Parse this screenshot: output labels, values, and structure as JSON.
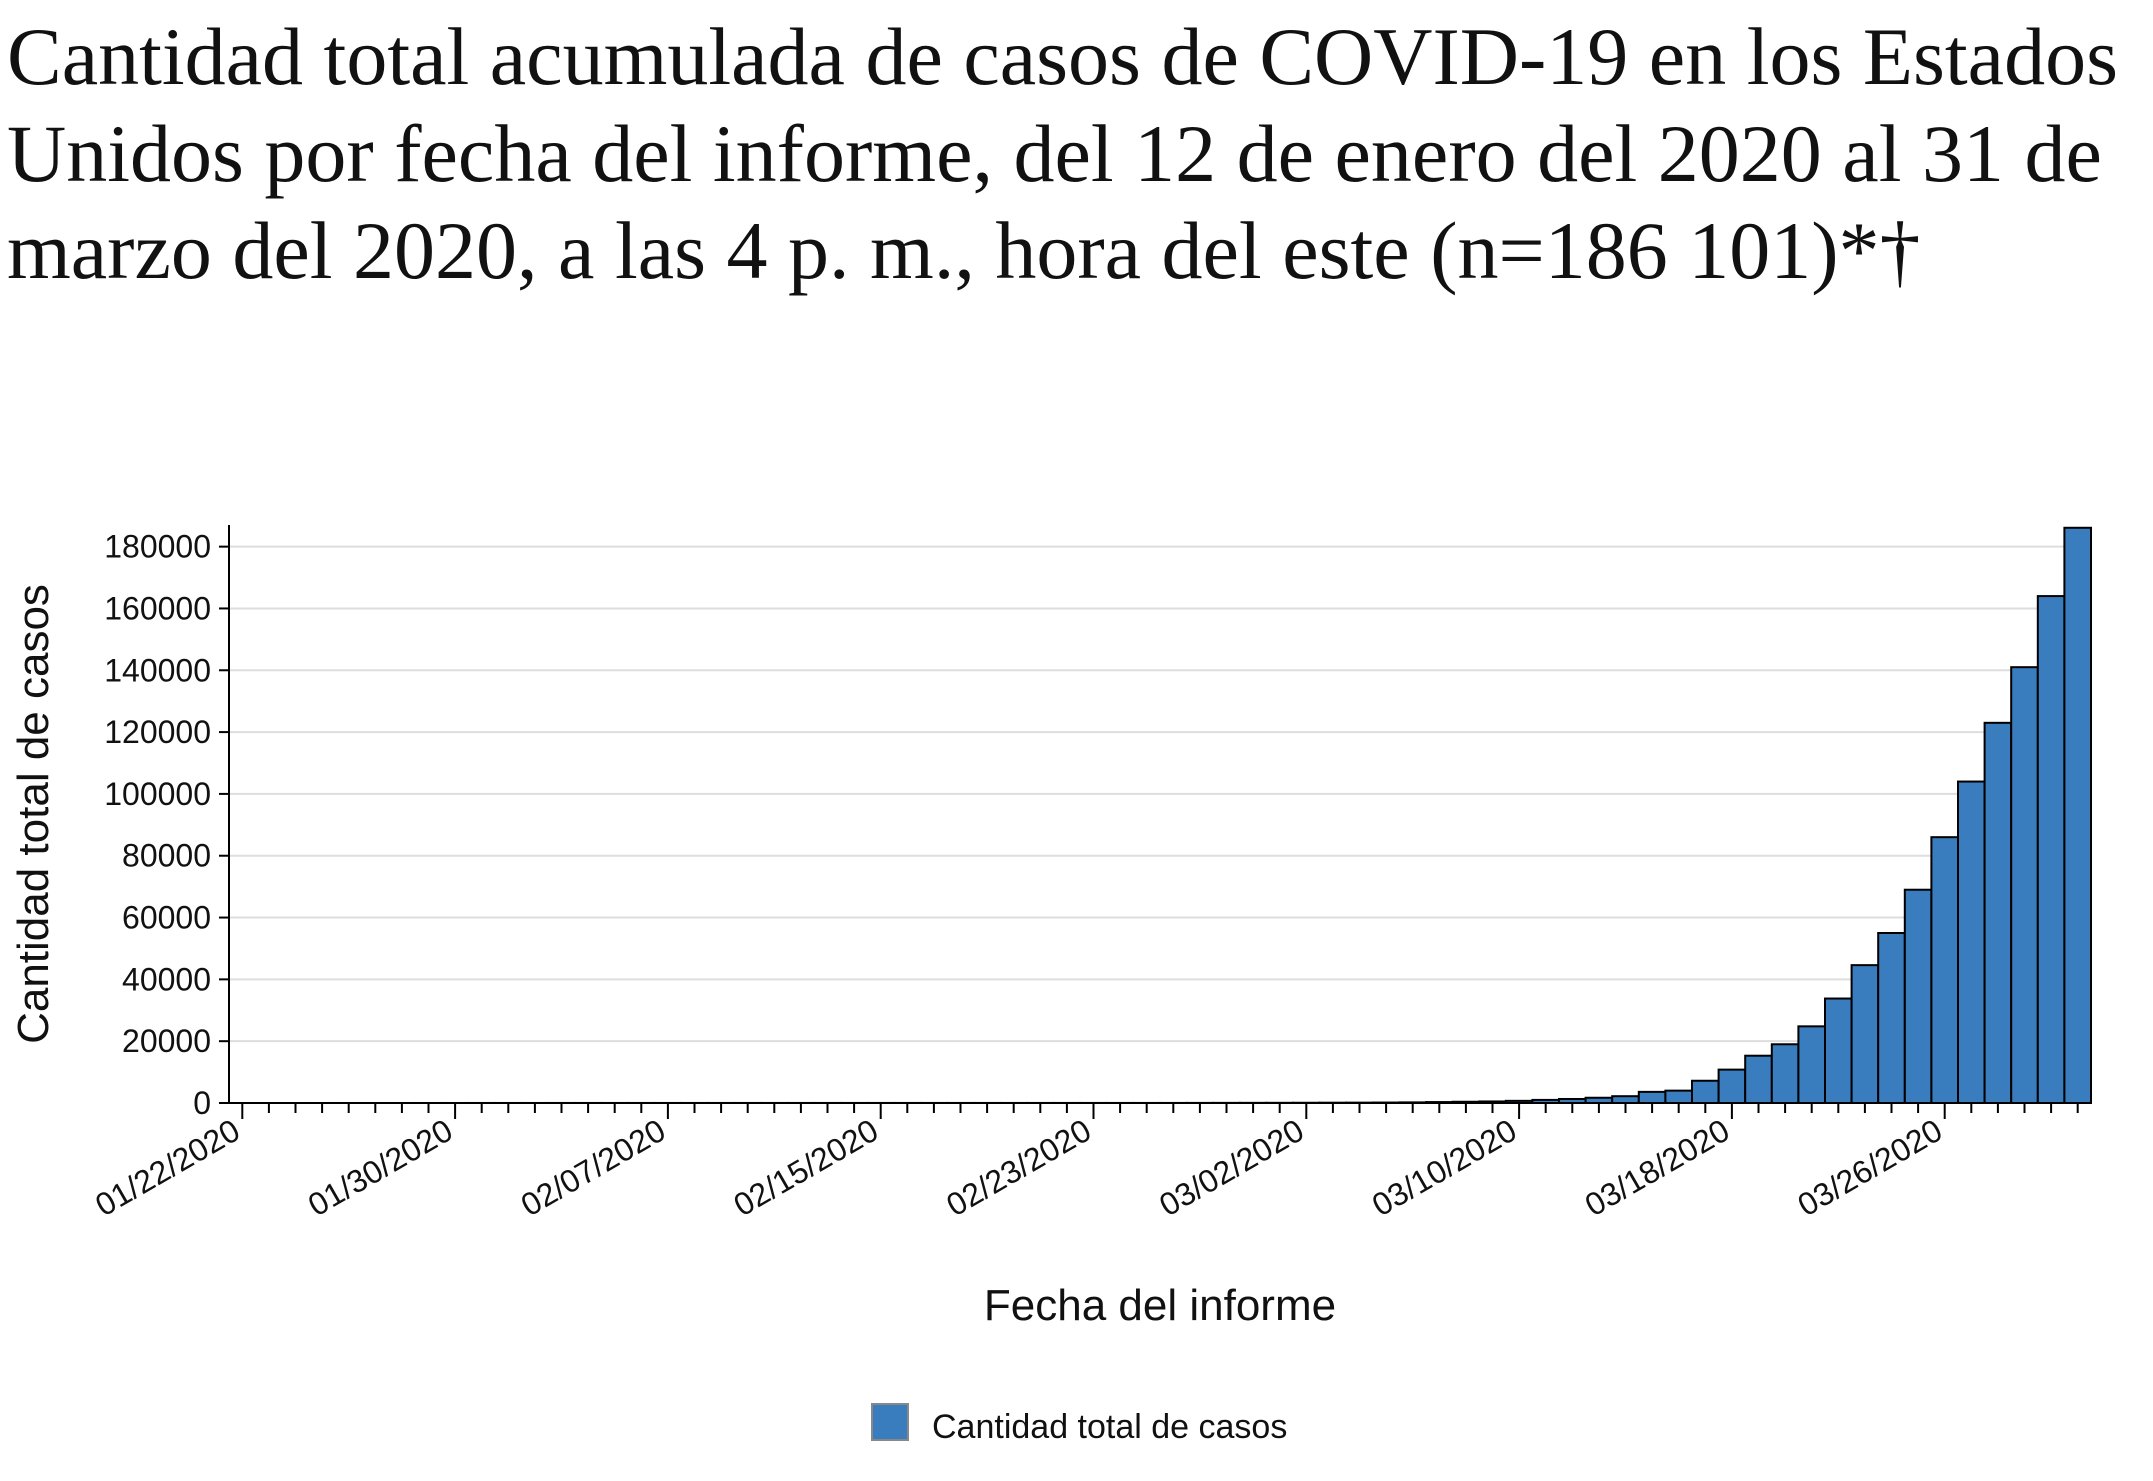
{
  "chart_data": {
    "type": "bar",
    "title": "Cantidad total acumulada de casos de COVID-19 en los Estados Unidos por fecha del informe, del 12 de enero del 2020 al 31 de marzo del 2020, a las 4 p. m., hora del este (n=186 101)*†",
    "x_label": "Fecha del informe",
    "y_label": "Cantidad total de casos",
    "categories": [
      "01/22/2020",
      null,
      null,
      null,
      null,
      null,
      null,
      null,
      "01/30/2020",
      null,
      null,
      null,
      null,
      null,
      null,
      null,
      "02/07/2020",
      null,
      null,
      null,
      null,
      null,
      null,
      null,
      "02/15/2020",
      null,
      null,
      null,
      null,
      null,
      null,
      null,
      "02/23/2020",
      null,
      null,
      null,
      null,
      null,
      null,
      null,
      "03/02/2020",
      null,
      null,
      null,
      null,
      null,
      null,
      null,
      "03/10/2020",
      null,
      null,
      null,
      null,
      null,
      null,
      null,
      "03/18/2020",
      null,
      null,
      null,
      null,
      null,
      null,
      null,
      "03/26/2020",
      null,
      null,
      null,
      null,
      null
    ],
    "series": [
      {
        "name": "Cantidad total de casos",
        "color": "#3a7dbf",
        "values": [
          1,
          1,
          2,
          2,
          5,
          5,
          5,
          6,
          6,
          7,
          8,
          8,
          11,
          11,
          12,
          12,
          12,
          12,
          12,
          13,
          13,
          14,
          14,
          15,
          15,
          15,
          15,
          15,
          15,
          15,
          15,
          16,
          16,
          16,
          16,
          20,
          30,
          40,
          50,
          60,
          80,
          100,
          120,
          150,
          200,
          300,
          400,
          500,
          700,
          1000,
          1300,
          1700,
          2200,
          3600,
          4000,
          7200,
          10800,
          15300,
          19000,
          24800,
          33800,
          44600,
          55000,
          69000,
          86000,
          104000,
          123000,
          141000,
          164000,
          186101
        ]
      }
    ],
    "ylim": [
      0,
      187000
    ],
    "yticks": [
      0,
      20000,
      40000,
      60000,
      80000,
      100000,
      120000,
      140000,
      160000,
      180000
    ],
    "grid": true
  }
}
